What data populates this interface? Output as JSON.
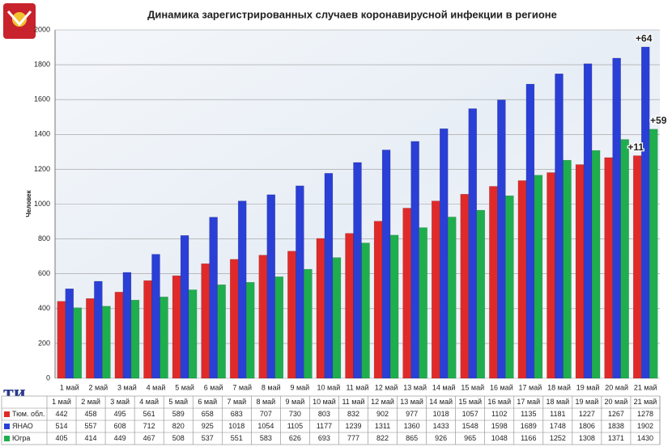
{
  "chart_data": {
    "type": "bar",
    "title": "Динамика зарегистрированных случаев коронавирусной инфекции  в регионе",
    "y_label": "Человек",
    "categories": [
      "1 май",
      "2 май",
      "3 май",
      "4 май",
      "5 май",
      "6 май",
      "7 май",
      "8 май",
      "9 май",
      "10 май",
      "11 май",
      "12 май",
      "13 май",
      "14 май",
      "15 май",
      "16 май",
      "17 май",
      "18 май",
      "19 май",
      "20 май",
      "21 май"
    ],
    "series": [
      {
        "name": "Тюм. обл.",
        "color": "#e02a2a",
        "values": [
          442,
          458,
          495,
          561,
          589,
          658,
          683,
          707,
          730,
          803,
          832,
          902,
          977,
          1018,
          1057,
          1102,
          1135,
          1181,
          1227,
          1267,
          1278
        ]
      },
      {
        "name": "ЯНАО",
        "color": "#2a3fd6",
        "values": [
          514,
          557,
          608,
          712,
          820,
          925,
          1018,
          1054,
          1105,
          1177,
          1239,
          1311,
          1360,
          1433,
          1548,
          1598,
          1689,
          1748,
          1806,
          1838,
          1902
        ]
      },
      {
        "name": "Югра",
        "color": "#1fae4e",
        "values": [
          405,
          414,
          449,
          467,
          508,
          537,
          551,
          583,
          626,
          693,
          777,
          822,
          865,
          926,
          965,
          1048,
          1166,
          1252,
          1308,
          1371,
          1430
        ]
      }
    ],
    "annotations": [
      "+64",
      "+11",
      "+59"
    ],
    "ylim": [
      0,
      2000
    ],
    "yticks": [
      0,
      200,
      400,
      600,
      800,
      1000,
      1200,
      1400,
      1600,
      1800,
      2000
    ],
    "grid": true
  }
}
